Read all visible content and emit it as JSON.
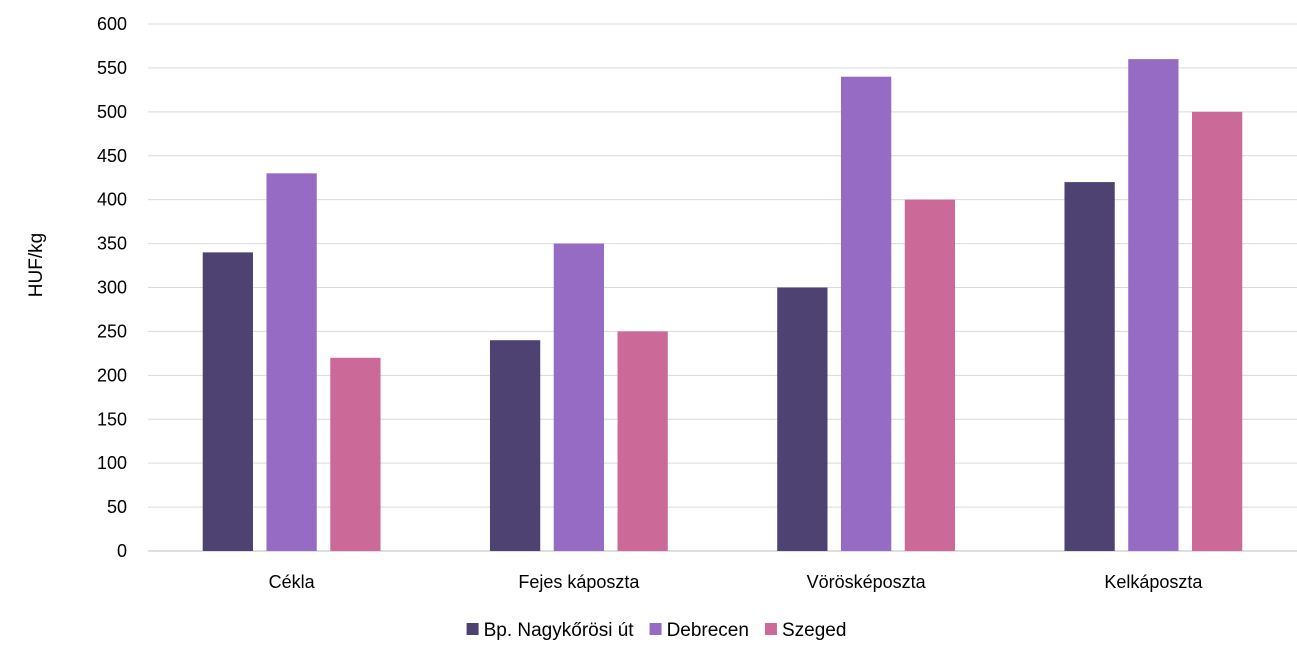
{
  "chart_data": {
    "type": "bar",
    "title": "",
    "xlabel": "",
    "ylabel": "HUF/kg",
    "ylim": [
      0,
      600
    ],
    "yticks": [
      0,
      50,
      100,
      150,
      200,
      250,
      300,
      350,
      400,
      450,
      500,
      550,
      600
    ],
    "grid": true,
    "legend_position": "bottom",
    "categories": [
      "Cékla",
      "Fejes káposzta",
      "Vörösképoszta",
      "Kelkáposzta"
    ],
    "series": [
      {
        "name": "Bp. Nagykőrösi út",
        "color": "#4e4272",
        "values": [
          340,
          240,
          300,
          420
        ]
      },
      {
        "name": "Debrecen",
        "color": "#956bc3",
        "values": [
          430,
          350,
          540,
          560
        ]
      },
      {
        "name": "Szeged",
        "color": "#cb6a99",
        "values": [
          220,
          250,
          400,
          500
        ]
      }
    ]
  }
}
